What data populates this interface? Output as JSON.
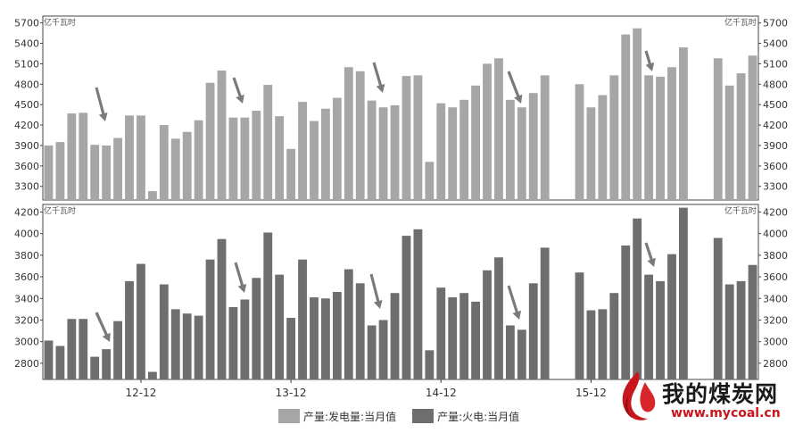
{
  "chart_data": [
    {
      "type": "bar",
      "unit_label": "亿千瓦时",
      "series": [
        {
          "name": "产量:发电量:当月值",
          "color": "#a6a6a6",
          "values": [
            3900,
            3950,
            4370,
            4380,
            3910,
            3900,
            4010,
            4340,
            4340,
            3230,
            4200,
            4000,
            4100,
            4270,
            4820,
            5000,
            4310,
            4310,
            4410,
            4790,
            4330,
            3850,
            4540,
            4260,
            4440,
            4600,
            5050,
            4990,
            4560,
            4460,
            4490,
            4920,
            4930,
            3660,
            4520,
            4460,
            4570,
            4780,
            5100,
            5180,
            4570,
            4460,
            4670,
            4930,
            null,
            null,
            4800,
            4460,
            4640,
            4930,
            5530,
            5620,
            4930,
            4910,
            5050,
            5340,
            null,
            null,
            5180,
            4780,
            4960,
            5220
          ]
        }
      ],
      "ylim": [
        3100,
        5800
      ],
      "yticks": [
        3300,
        3600,
        3900,
        4200,
        4500,
        4800,
        5100,
        5400,
        5700
      ],
      "annotation": "arrows mark dips in generation"
    },
    {
      "type": "bar",
      "unit_label": "亿千瓦时",
      "series": [
        {
          "name": "产量:火电:当月值",
          "color": "#6e6e6e",
          "values": [
            3010,
            2960,
            3210,
            3210,
            2860,
            2930,
            3190,
            3560,
            3720,
            2720,
            3530,
            3300,
            3260,
            3240,
            3760,
            3950,
            3320,
            3390,
            3590,
            4010,
            3620,
            3220,
            3760,
            3410,
            3400,
            3460,
            3670,
            3540,
            3150,
            3200,
            3450,
            3980,
            4040,
            2920,
            3500,
            3410,
            3450,
            3370,
            3660,
            3780,
            3150,
            3110,
            3540,
            3870,
            null,
            null,
            3640,
            3290,
            3300,
            3450,
            3890,
            4140,
            3620,
            3560,
            3810,
            4240,
            null,
            null,
            3960,
            3530,
            3560,
            3710
          ]
        }
      ],
      "xticks": [
        "12-12",
        "13-12",
        "14-12",
        "15-12"
      ],
      "ylim": [
        2650,
        4270
      ],
      "yticks": [
        2800,
        3000,
        3200,
        3400,
        3600,
        3800,
        4000,
        4200
      ]
    }
  ],
  "legend": {
    "items": [
      {
        "label": "产量:发电量:当月值",
        "color": "#a6a6a6"
      },
      {
        "label": "产量:火电:当月值",
        "color": "#6e6e6e"
      }
    ]
  },
  "watermark": {
    "title": "我的煤炭网",
    "url": "www.mycoal.cn"
  }
}
